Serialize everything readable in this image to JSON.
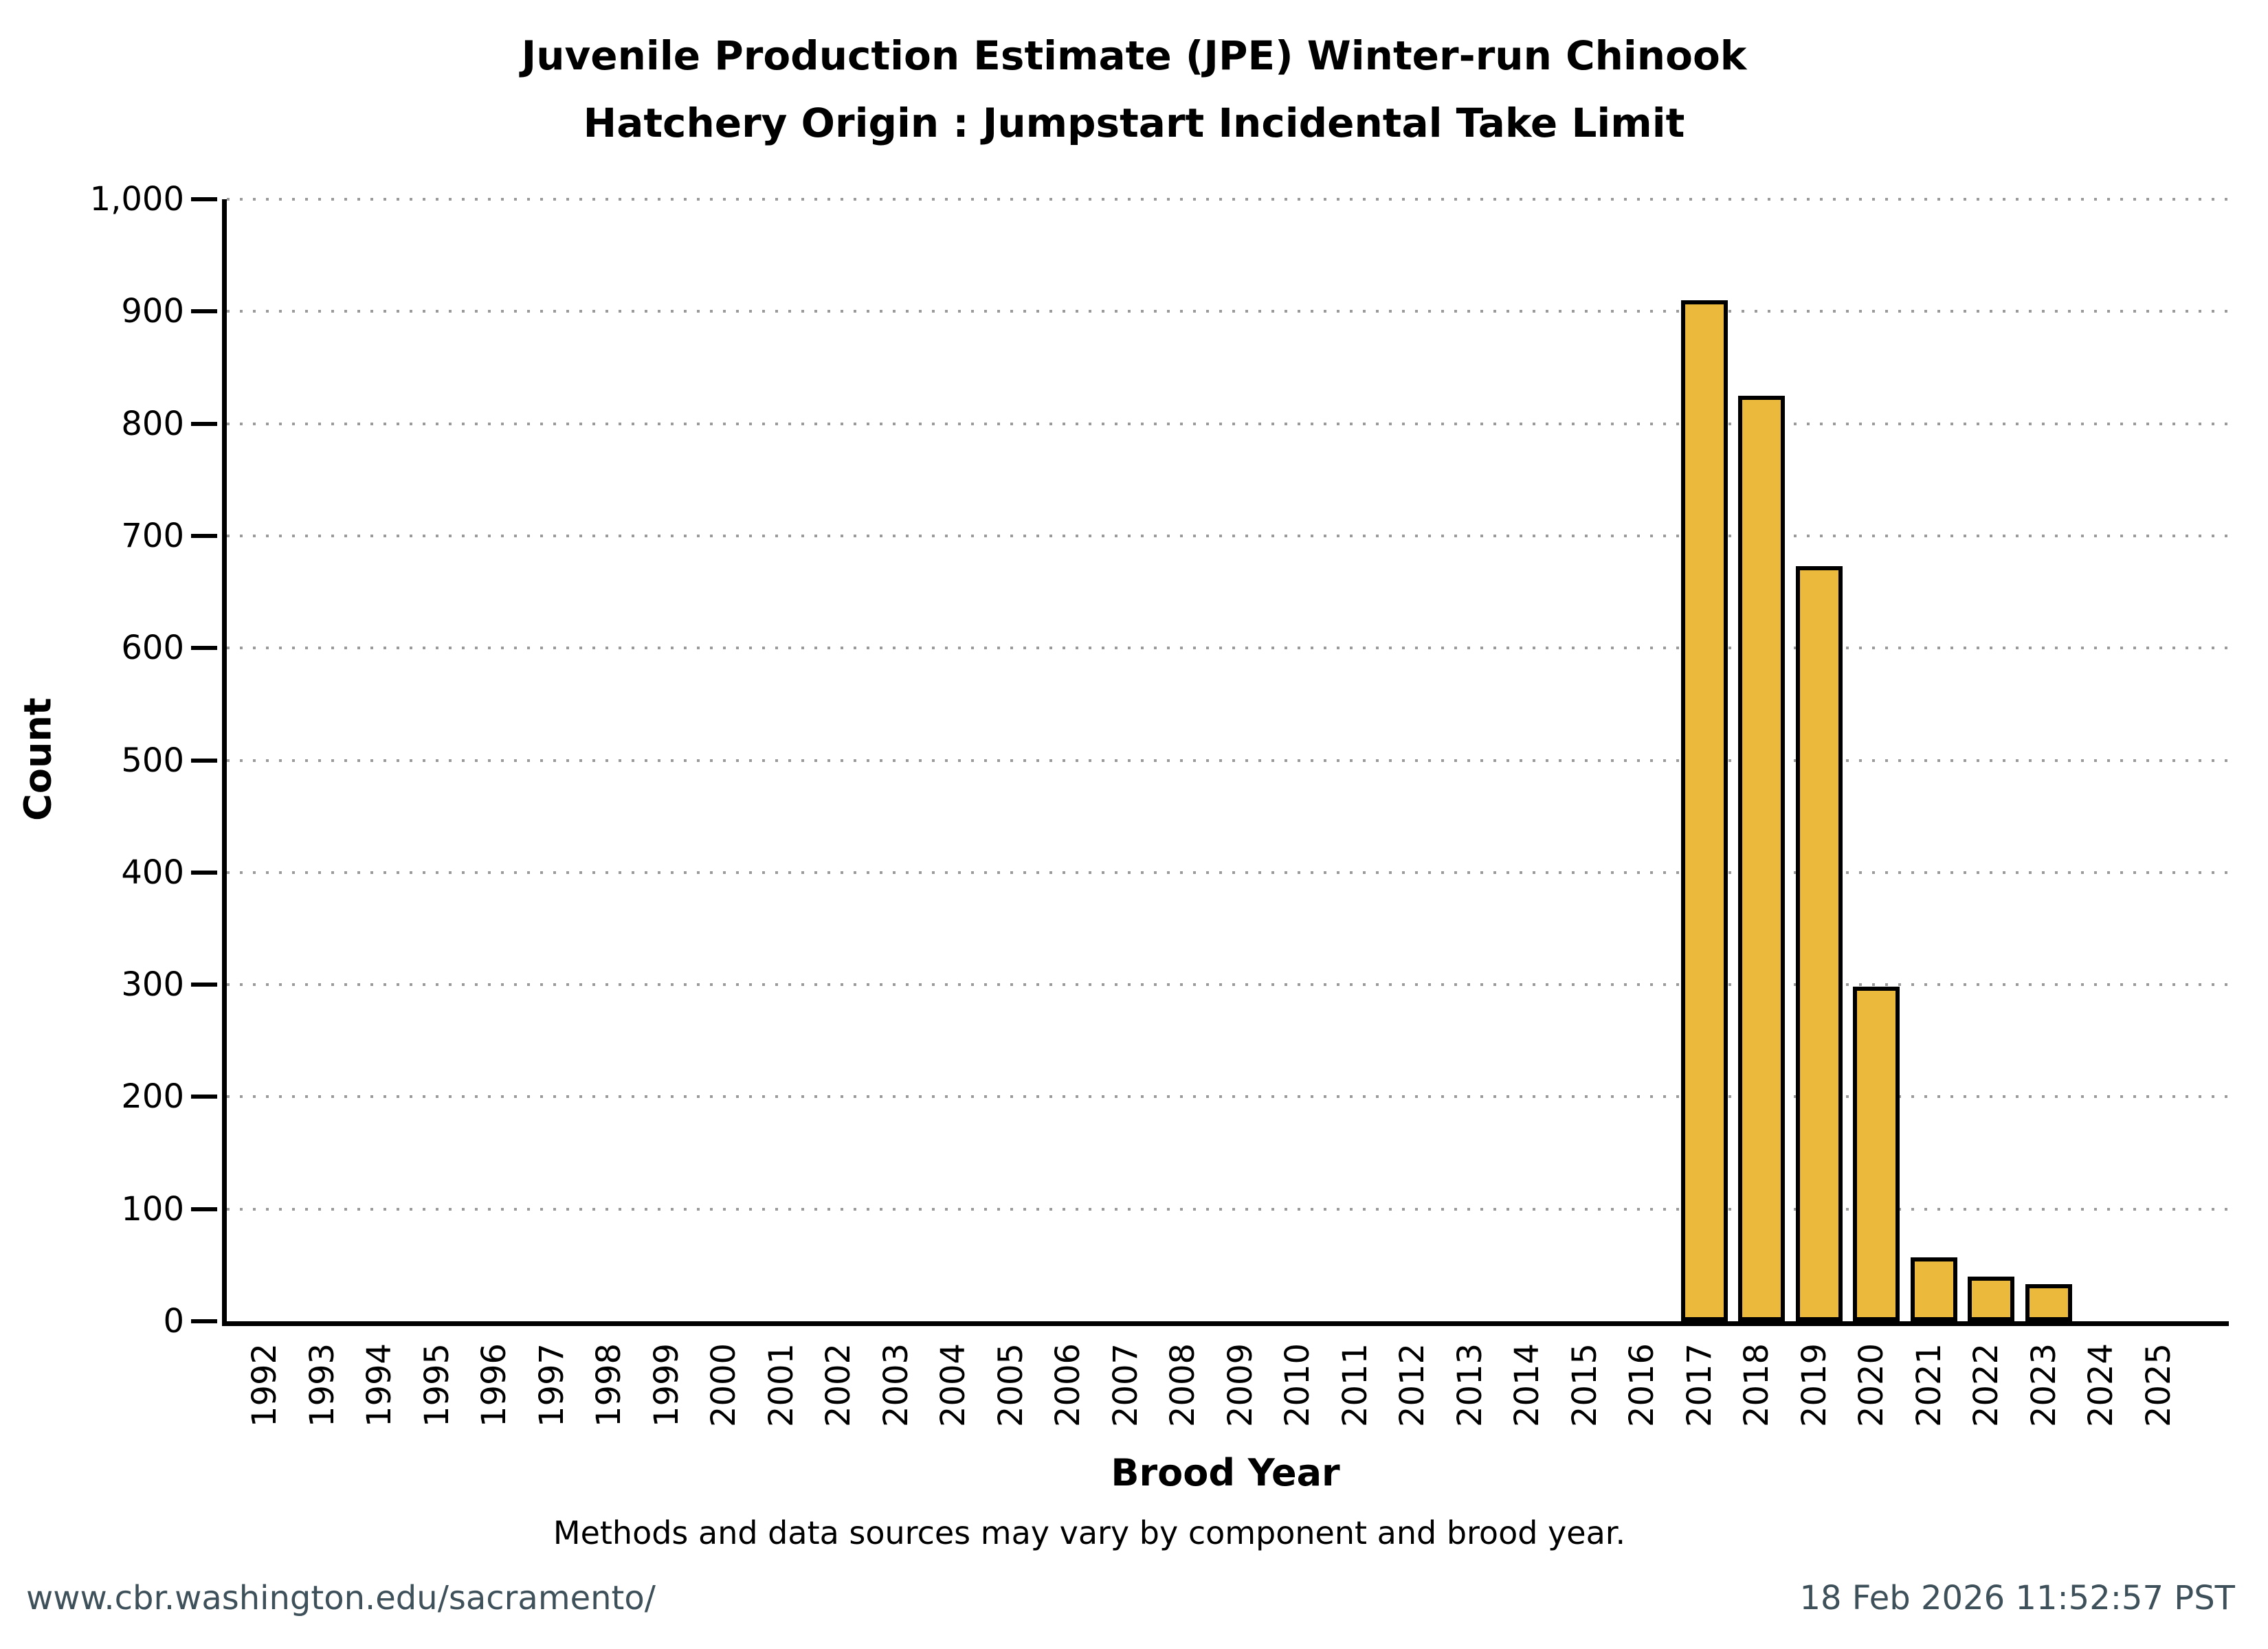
{
  "title": {
    "line1": "Juvenile Production Estimate (JPE) Winter-run Chinook",
    "line2": "Hatchery Origin : Jumpstart Incidental Take Limit"
  },
  "chart_data": {
    "type": "bar",
    "title": "Juvenile Production Estimate (JPE) Winter-run Chinook — Hatchery Origin : Jumpstart Incidental Take Limit",
    "xlabel": "Brood Year",
    "ylabel": "Count",
    "categories": [
      "1992",
      "1993",
      "1994",
      "1995",
      "1996",
      "1997",
      "1998",
      "1999",
      "2000",
      "2001",
      "2002",
      "2003",
      "2004",
      "2005",
      "2006",
      "2007",
      "2008",
      "2009",
      "2010",
      "2011",
      "2012",
      "2013",
      "2014",
      "2015",
      "2016",
      "2017",
      "2018",
      "2019",
      "2020",
      "2021",
      "2022",
      "2023",
      "2024",
      "2025"
    ],
    "values": [
      null,
      null,
      null,
      null,
      null,
      null,
      null,
      null,
      null,
      null,
      null,
      null,
      null,
      null,
      null,
      null,
      null,
      null,
      null,
      null,
      null,
      null,
      null,
      null,
      null,
      910,
      825,
      673,
      298,
      57,
      40,
      33,
      null,
      null
    ],
    "ylim": [
      0,
      1000
    ],
    "ytick_step": 100,
    "grid": "horizontal-dotted",
    "legend": "none",
    "bar_color": "#EBBA3C",
    "bar_border_color": "#000000"
  },
  "y_axis": {
    "tick_labels": [
      "1,000",
      "900",
      "800",
      "700",
      "600",
      "500",
      "400",
      "300",
      "200",
      "100",
      "0"
    ]
  },
  "footer": {
    "note": "Methods and data sources may vary by component and brood year.",
    "url": "www.cbr.washington.edu/sacramento/",
    "timestamp": "18 Feb 2026 11:52:57 PST",
    "text_color": "#3E5059"
  }
}
